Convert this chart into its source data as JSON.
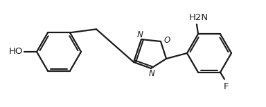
{
  "bg_color": "#ffffff",
  "line_color": "#1a1a1a",
  "line_width": 1.6,
  "text_color": "#1a1a1a",
  "ho_label": "HO",
  "nh2_label": "H2N",
  "f_label": "F",
  "n_label_1": "N",
  "n_label_2": "N",
  "o_label": "O",
  "figw": 3.84,
  "figh": 1.55,
  "dpi": 100,
  "xlim": [
    0,
    384
  ],
  "ylim": [
    0,
    155
  ]
}
